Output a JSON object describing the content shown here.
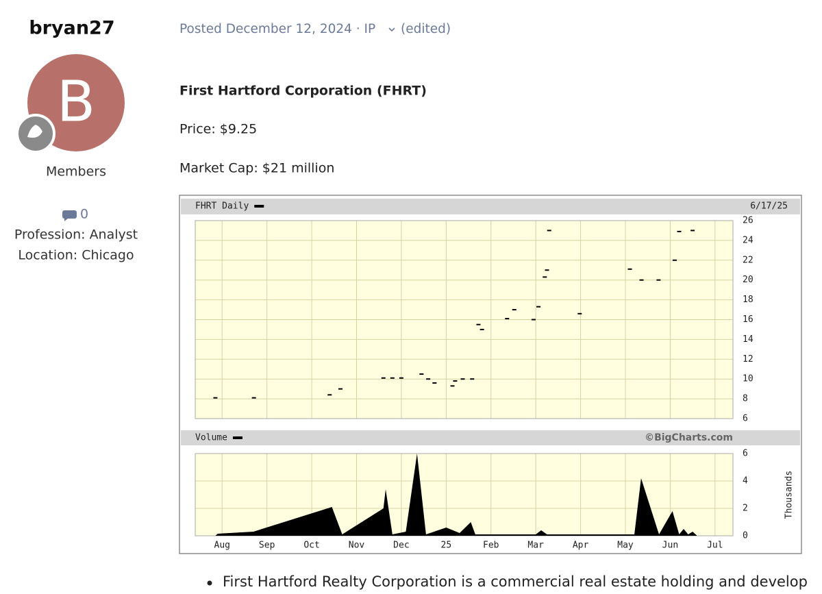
{
  "author": {
    "username": "bryan27",
    "avatar_letter": "B",
    "group": "Members",
    "comment_count": "0",
    "profession": "Profession: Analyst",
    "location": "Location: Chicago"
  },
  "post": {
    "meta": "Posted December 12, 2024 · IP",
    "edited": "(edited)",
    "heading": "First Hartford Corporation (FHRT)",
    "price": "Price: $9.25",
    "market_cap": "Market Cap: $21 million",
    "bullets": [
      "First Hartford Realty Corporation is a commercial real estate holding and develop"
    ]
  },
  "chart_data": [
    {
      "type": "scatter",
      "title": "FHRT Daily",
      "subtitle": "6/17/25",
      "color": "#000000",
      "x": [
        -0.15,
        0.71,
        2.4,
        2.64,
        3.6,
        3.8,
        4.0,
        4.45,
        4.6,
        4.74,
        5.14,
        5.2,
        5.37,
        5.58,
        5.72,
        5.8,
        6.36,
        6.52,
        6.95,
        7.06,
        7.2,
        7.25,
        7.3,
        7.98,
        9.1,
        9.36,
        9.74,
        10.1,
        10.2,
        10.5
      ],
      "values": [
        8.1,
        8.1,
        8.4,
        9.0,
        10.1,
        10.1,
        10.1,
        10.5,
        10.0,
        9.6,
        9.3,
        9.8,
        10.0,
        10.0,
        15.5,
        15.0,
        16.1,
        17.0,
        16.0,
        17.3,
        20.3,
        21.0,
        25.0,
        16.6,
        21.1,
        20.0,
        20.0,
        22.0,
        24.9,
        25.0
      ],
      "xlim": [
        -0.6,
        11.4
      ],
      "ylim": [
        6,
        26
      ],
      "yticks": [
        6,
        8,
        10,
        12,
        14,
        16,
        18,
        20,
        22,
        24,
        26
      ],
      "grid": true
    },
    {
      "type": "area",
      "title": "Volume",
      "annotation": "©BigCharts.com",
      "y_label": "Thousands",
      "color": "#000000",
      "x": [
        -0.15,
        -0.1,
        0.7,
        2.45,
        2.68,
        3.6,
        3.65,
        3.8,
        4.1,
        4.35,
        4.55,
        5.0,
        5.3,
        5.55,
        5.65,
        7.0,
        7.12,
        7.25,
        9.2,
        9.35,
        9.75,
        10.05,
        10.2,
        10.3,
        10.4,
        10.5,
        10.6
      ],
      "values": [
        0,
        0.15,
        0.3,
        2.1,
        0.1,
        2.0,
        3.4,
        0.1,
        0.3,
        6.0,
        0.1,
        0.6,
        0.2,
        1.0,
        0.1,
        0.1,
        0.4,
        0.1,
        0.1,
        4.2,
        0.1,
        1.8,
        0.1,
        0.5,
        0.1,
        0.3,
        0
      ],
      "xlim": [
        -0.6,
        11.4
      ],
      "ylim": [
        0,
        6
      ],
      "yticks": [
        0,
        2,
        4,
        6
      ],
      "grid": true,
      "xticks": [
        {
          "value": 0,
          "label": "Aug"
        },
        {
          "value": 1,
          "label": "Sep"
        },
        {
          "value": 2,
          "label": "Oct"
        },
        {
          "value": 3,
          "label": "Nov"
        },
        {
          "value": 4,
          "label": "Dec"
        },
        {
          "value": 5,
          "label": "25"
        },
        {
          "value": 6,
          "label": "Feb"
        },
        {
          "value": 7,
          "label": "Mar"
        },
        {
          "value": 8,
          "label": "Apr"
        },
        {
          "value": 9,
          "label": "May"
        },
        {
          "value": 10,
          "label": "Jun"
        },
        {
          "value": 11,
          "label": "Jul"
        }
      ]
    }
  ]
}
